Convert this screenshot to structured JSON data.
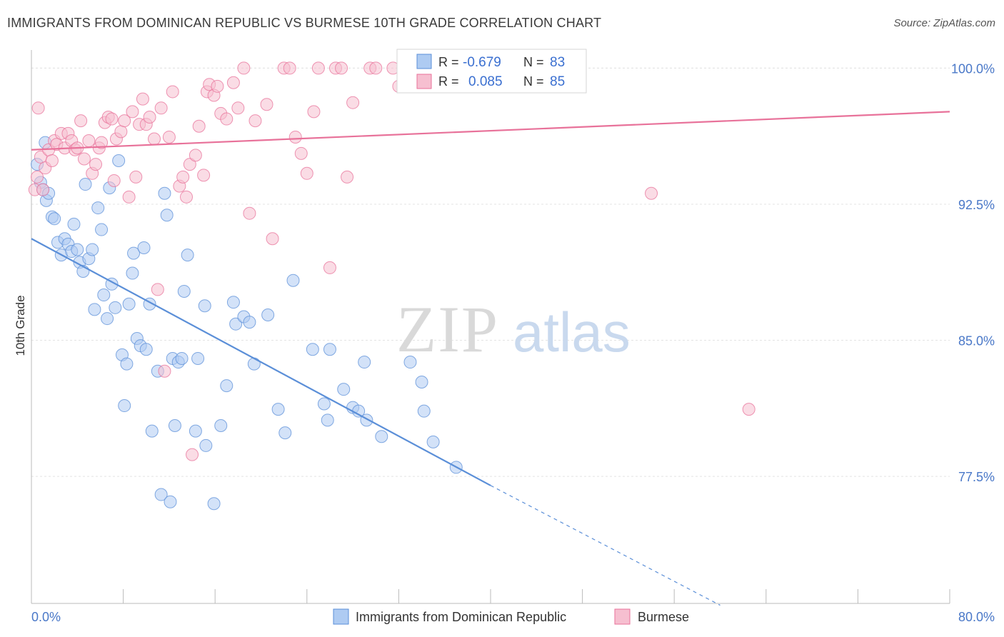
{
  "title": "IMMIGRANTS FROM DOMINICAN REPUBLIC VS BURMESE 10TH GRADE CORRELATION CHART",
  "source": "Source: ZipAtlas.com",
  "watermark": {
    "zip": "ZIP",
    "atlas": "atlas"
  },
  "colors": {
    "blue": "#5b8fd8",
    "blue_fill": "#aecbf2",
    "pink": "#e8729a",
    "pink_fill": "#f6bfd0",
    "tick": "#4a78c8"
  },
  "legend": {
    "r_label": "R =",
    "n_label": "N =",
    "rows": [
      {
        "r": "-0.679",
        "n": "83"
      },
      {
        "r": "0.085",
        "n": "85"
      }
    ]
  },
  "chart_data": {
    "type": "scatter",
    "title": "IMMIGRANTS FROM DOMINICAN REPUBLIC VS BURMESE 10TH GRADE CORRELATION CHART",
    "xlabel": "",
    "ylabel": "10th Grade",
    "xlim": [
      0,
      80
    ],
    "ylim": [
      70.5,
      101
    ],
    "x_tick_labels": [
      "0.0%",
      "80.0%"
    ],
    "y_ticks": [
      77.5,
      85.0,
      92.5,
      100.0
    ],
    "y_tick_labels": [
      "77.5%",
      "85.0%",
      "92.5%",
      "100.0%"
    ],
    "grid": true,
    "legend_position": "top-center",
    "series": [
      {
        "name": "Immigrants from Dominican Republic",
        "color": "#5b8fd8",
        "trend": {
          "x0": 0,
          "y0": 90.6,
          "x1": 40,
          "y1": 77.0,
          "dash_to_x": 60,
          "dash_to_y": 70.4
        },
        "points": [
          [
            0.5,
            94.7
          ],
          [
            0.8,
            93.7
          ],
          [
            1.0,
            93.3
          ],
          [
            1.3,
            92.7
          ],
          [
            1.5,
            93.1
          ],
          [
            1.8,
            91.8
          ],
          [
            2.0,
            91.7
          ],
          [
            2.3,
            90.4
          ],
          [
            2.6,
            89.7
          ],
          [
            2.9,
            90.6
          ],
          [
            3.2,
            90.3
          ],
          [
            3.5,
            89.9
          ],
          [
            3.7,
            91.4
          ],
          [
            4.0,
            90.0
          ],
          [
            4.2,
            89.3
          ],
          [
            4.5,
            88.8
          ],
          [
            4.7,
            93.6
          ],
          [
            5.0,
            89.5
          ],
          [
            5.3,
            90.0
          ],
          [
            5.5,
            86.7
          ],
          [
            5.8,
            92.3
          ],
          [
            6.1,
            91.1
          ],
          [
            6.3,
            87.5
          ],
          [
            6.6,
            86.2
          ],
          [
            6.8,
            93.4
          ],
          [
            7.0,
            88.1
          ],
          [
            7.3,
            86.8
          ],
          [
            7.6,
            94.9
          ],
          [
            7.9,
            84.2
          ],
          [
            8.1,
            81.4
          ],
          [
            8.3,
            83.7
          ],
          [
            8.5,
            87.0
          ],
          [
            8.8,
            88.7
          ],
          [
            8.9,
            89.8
          ],
          [
            9.2,
            85.1
          ],
          [
            9.5,
            84.7
          ],
          [
            9.8,
            90.1
          ],
          [
            10.0,
            84.5
          ],
          [
            10.3,
            87.0
          ],
          [
            10.5,
            80.0
          ],
          [
            11.0,
            83.3
          ],
          [
            11.3,
            76.5
          ],
          [
            11.6,
            93.1
          ],
          [
            11.8,
            91.9
          ],
          [
            12.1,
            76.1
          ],
          [
            12.3,
            84.0
          ],
          [
            12.5,
            80.3
          ],
          [
            12.8,
            83.8
          ],
          [
            13.1,
            84.0
          ],
          [
            13.3,
            87.7
          ],
          [
            13.6,
            89.7
          ],
          [
            14.3,
            80.0
          ],
          [
            14.5,
            84.0
          ],
          [
            15.1,
            86.9
          ],
          [
            15.2,
            79.2
          ],
          [
            15.9,
            76.0
          ],
          [
            16.5,
            80.3
          ],
          [
            17.0,
            82.5
          ],
          [
            17.6,
            87.1
          ],
          [
            17.8,
            85.9
          ],
          [
            18.5,
            86.3
          ],
          [
            19.0,
            86.0
          ],
          [
            19.4,
            83.7
          ],
          [
            20.6,
            86.4
          ],
          [
            21.5,
            81.2
          ],
          [
            22.1,
            79.9
          ],
          [
            22.8,
            88.3
          ],
          [
            24.5,
            84.5
          ],
          [
            25.5,
            81.5
          ],
          [
            25.8,
            80.6
          ],
          [
            26.0,
            84.5
          ],
          [
            27.2,
            82.3
          ],
          [
            28.0,
            81.3
          ],
          [
            28.5,
            81.1
          ],
          [
            29.0,
            83.8
          ],
          [
            29.2,
            80.6
          ],
          [
            30.5,
            79.7
          ],
          [
            33.0,
            83.8
          ],
          [
            34.0,
            82.7
          ],
          [
            34.2,
            81.1
          ],
          [
            35.0,
            79.4
          ],
          [
            37.0,
            78.0
          ],
          [
            1.2,
            95.9
          ]
        ]
      },
      {
        "name": "Burmese",
        "color": "#e8729a",
        "trend": {
          "x0": 0,
          "y0": 95.5,
          "x1": 80,
          "y1": 97.6
        },
        "points": [
          [
            0.3,
            93.3
          ],
          [
            0.5,
            94.0
          ],
          [
            0.8,
            95.1
          ],
          [
            1.0,
            93.3
          ],
          [
            1.2,
            94.5
          ],
          [
            1.5,
            95.5
          ],
          [
            1.8,
            94.9
          ],
          [
            2.0,
            96.0
          ],
          [
            2.2,
            95.8
          ],
          [
            2.6,
            96.4
          ],
          [
            2.9,
            95.6
          ],
          [
            3.2,
            96.4
          ],
          [
            3.5,
            96.0
          ],
          [
            3.8,
            95.5
          ],
          [
            4.0,
            95.6
          ],
          [
            4.3,
            97.1
          ],
          [
            4.6,
            95.0
          ],
          [
            5.0,
            96.0
          ],
          [
            5.3,
            94.2
          ],
          [
            5.6,
            94.7
          ],
          [
            5.9,
            95.6
          ],
          [
            6.1,
            95.9
          ],
          [
            6.4,
            97.0
          ],
          [
            6.7,
            97.3
          ],
          [
            7.0,
            97.2
          ],
          [
            7.2,
            93.8
          ],
          [
            7.4,
            96.1
          ],
          [
            7.8,
            96.5
          ],
          [
            8.1,
            97.1
          ],
          [
            8.5,
            92.9
          ],
          [
            8.8,
            97.6
          ],
          [
            9.1,
            94.0
          ],
          [
            9.4,
            96.9
          ],
          [
            9.7,
            98.3
          ],
          [
            10.0,
            96.9
          ],
          [
            10.3,
            97.3
          ],
          [
            10.7,
            96.1
          ],
          [
            11.0,
            87.8
          ],
          [
            11.3,
            97.8
          ],
          [
            11.6,
            83.3
          ],
          [
            12.0,
            96.2
          ],
          [
            12.3,
            98.7
          ],
          [
            12.9,
            93.5
          ],
          [
            13.2,
            94.0
          ],
          [
            13.5,
            92.9
          ],
          [
            13.8,
            94.7
          ],
          [
            14.0,
            78.7
          ],
          [
            14.3,
            95.2
          ],
          [
            14.6,
            96.8
          ],
          [
            15.0,
            94.1
          ],
          [
            15.3,
            98.7
          ],
          [
            15.5,
            99.1
          ],
          [
            15.9,
            98.5
          ],
          [
            16.2,
            99.0
          ],
          [
            16.5,
            97.5
          ],
          [
            17.0,
            97.2
          ],
          [
            17.6,
            99.2
          ],
          [
            18.0,
            97.8
          ],
          [
            18.5,
            100.0
          ],
          [
            19.0,
            92.0
          ],
          [
            19.5,
            97.1
          ],
          [
            20.5,
            98.0
          ],
          [
            21.0,
            90.6
          ],
          [
            22.0,
            100.0
          ],
          [
            22.5,
            100.0
          ],
          [
            23.0,
            96.2
          ],
          [
            23.5,
            95.3
          ],
          [
            24.0,
            94.2
          ],
          [
            24.6,
            97.6
          ],
          [
            25.0,
            100.0
          ],
          [
            26.0,
            89.0
          ],
          [
            26.5,
            100.0
          ],
          [
            27.0,
            100.0
          ],
          [
            27.5,
            94.0
          ],
          [
            28.0,
            98.1
          ],
          [
            29.5,
            100.0
          ],
          [
            30.0,
            100.0
          ],
          [
            31.5,
            100.0
          ],
          [
            32.0,
            99.0
          ],
          [
            34.0,
            99.7
          ],
          [
            35.0,
            100.0
          ],
          [
            36.5,
            100.0
          ],
          [
            54.0,
            93.1
          ],
          [
            62.5,
            81.2
          ],
          [
            0.6,
            97.8
          ]
        ]
      }
    ]
  },
  "bottom_legend": [
    {
      "label": "Immigrants from Dominican Republic"
    },
    {
      "label": "Burmese"
    }
  ]
}
